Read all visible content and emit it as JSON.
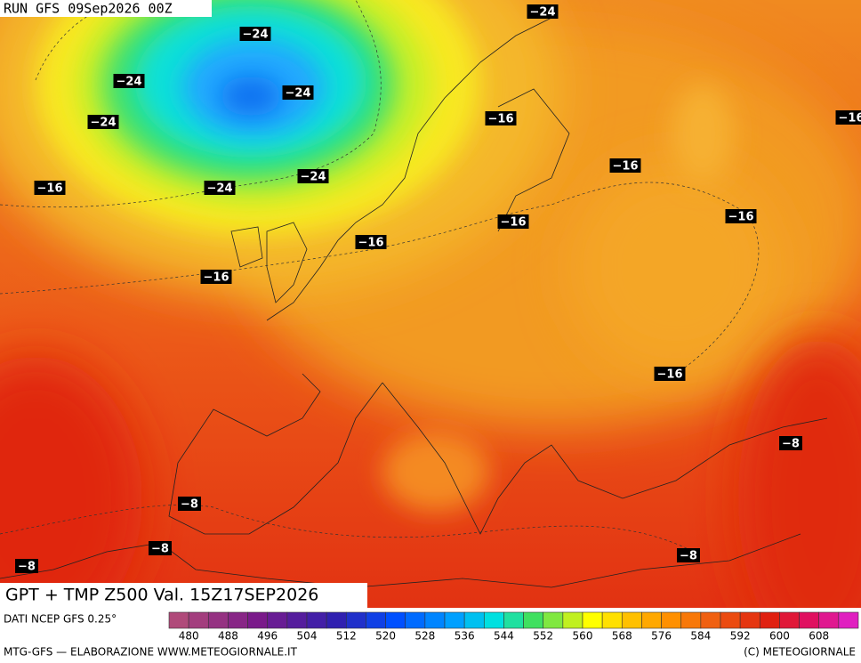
{
  "header": {
    "run": "RUN GFS 09Sep2026 00Z"
  },
  "isotherm_labels": [
    "−24",
    "−24",
    "−24",
    "−24",
    "−24",
    "−24",
    "−24",
    "−16",
    "−16",
    "−16",
    "−16",
    "−16",
    "−16",
    "−16",
    "−16",
    "−16",
    "−8",
    "−8",
    "−8",
    "−8",
    "−8"
  ],
  "product": "GPT + TMP Z500 Val. 15Z17SEP2026",
  "legend": {
    "source": "DATI NCEP GFS 0.25°",
    "ticks": [
      480,
      488,
      496,
      504,
      512,
      520,
      528,
      536,
      544,
      552,
      560,
      568,
      576,
      584,
      592,
      600,
      608
    ]
  },
  "footer": {
    "left": "MTG-GFS — ELABORAZIONE WWW.METEOGIORNALE.IT",
    "right": "(C) METEOGIORNALE"
  }
}
